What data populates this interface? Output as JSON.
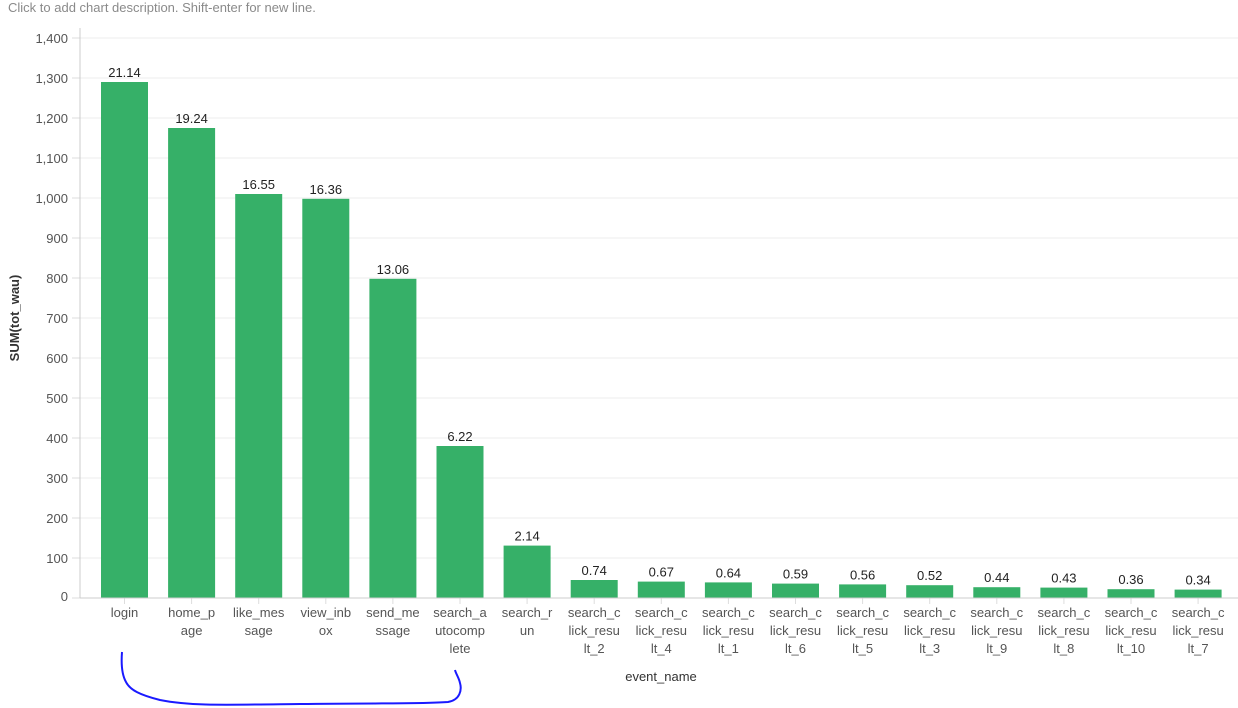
{
  "description_placeholder": "Click to add chart description. Shift-enter for new line.",
  "chart_data": {
    "type": "bar",
    "xlabel": "event_name",
    "ylabel": "SUM(tot_wau)",
    "ylim": [
      0,
      1400
    ],
    "yticks": [
      0,
      100,
      200,
      300,
      400,
      500,
      600,
      700,
      800,
      900,
      1000,
      1100,
      1200,
      1300,
      1400
    ],
    "ytick_labels": [
      "0",
      "100",
      "200",
      "300",
      "400",
      "500",
      "600",
      "700",
      "800",
      "900",
      "1,000",
      "1,100",
      "1,200",
      "1,300",
      "1,400"
    ],
    "grid": true,
    "bar_color": "#36b068",
    "categories": [
      "login",
      "home_page",
      "like_message",
      "view_inbox",
      "send_message",
      "search_autocomplete",
      "search_run",
      "search_click_result_2",
      "search_click_result_4",
      "search_click_result_1",
      "search_click_result_6",
      "search_click_result_5",
      "search_click_result_3",
      "search_click_result_9",
      "search_click_result_8",
      "search_click_result_10",
      "search_click_result_7"
    ],
    "category_label_lines": [
      [
        "login"
      ],
      [
        "home_p",
        "age"
      ],
      [
        "like_mes",
        "sage"
      ],
      [
        "view_inb",
        "ox"
      ],
      [
        "send_me",
        "ssage"
      ],
      [
        "search_a",
        "utocomp",
        "lete"
      ],
      [
        "search_r",
        "un"
      ],
      [
        "search_c",
        "lick_resu",
        "lt_2"
      ],
      [
        "search_c",
        "lick_resu",
        "lt_4"
      ],
      [
        "search_c",
        "lick_resu",
        "lt_1"
      ],
      [
        "search_c",
        "lick_resu",
        "lt_6"
      ],
      [
        "search_c",
        "lick_resu",
        "lt_5"
      ],
      [
        "search_c",
        "lick_resu",
        "lt_3"
      ],
      [
        "search_c",
        "lick_resu",
        "lt_9"
      ],
      [
        "search_c",
        "lick_resu",
        "lt_8"
      ],
      [
        "search_c",
        "lick_resu",
        "lt_10"
      ],
      [
        "search_c",
        "lick_resu",
        "lt_7"
      ]
    ],
    "values": [
      1290,
      1175,
      1010,
      998,
      798,
      380,
      131,
      45,
      41,
      39,
      36,
      34,
      32,
      27,
      26,
      22,
      21
    ],
    "data_labels": [
      "21.14",
      "19.24",
      "16.55",
      "16.36",
      "13.06",
      "6.22",
      "2.14",
      "0.74",
      "0.67",
      "0.64",
      "0.59",
      "0.56",
      "0.52",
      "0.44",
      "0.43",
      "0.36",
      "0.34"
    ],
    "annotation": {
      "type": "hand-drawn bracket",
      "color": "#1a1aff",
      "spans_categories": [
        "login",
        "search_autocomplete"
      ]
    }
  }
}
